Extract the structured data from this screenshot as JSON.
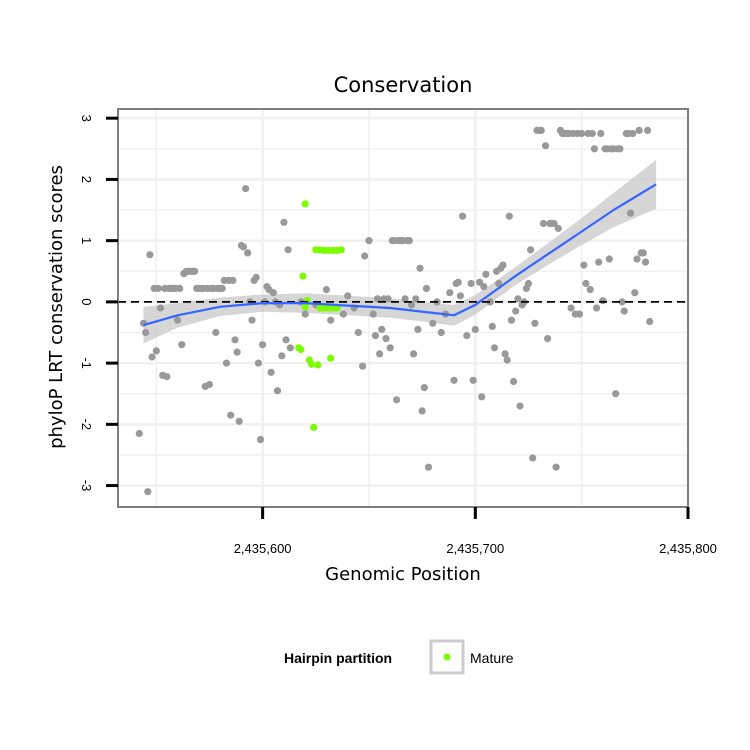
{
  "chart_data": {
    "type": "scatter",
    "title": "Conservation",
    "xlabel": "Genomic Position",
    "ylabel": "phyloP LRT conservation scores",
    "xlim": [
      2435532,
      2435800
    ],
    "ylim": [
      -3.35,
      3.15
    ],
    "x_ticks": [
      2435600,
      2435700,
      2435800
    ],
    "x_tick_labels": [
      "2,435,600",
      "2,435,700",
      "2,435,800"
    ],
    "y_ticks": [
      -3,
      -2,
      -1,
      0,
      1,
      2,
      3
    ],
    "y_tick_labels": [
      "-3",
      "-2",
      "-1",
      "0",
      "1",
      "2",
      "3"
    ],
    "grid": true,
    "reference_line": {
      "y": 0,
      "style": "dashed"
    },
    "colors": {
      "points": "#999999",
      "mature": "#7CFC00",
      "smooth": "#3366FF",
      "ribbon": "#c8c8c8",
      "grid": "#f0f0f0",
      "border": "#7f7f7f"
    },
    "legend": {
      "title": "Hairpin partition",
      "placement": "bottom",
      "entries": [
        {
          "label": "Mature",
          "color": "#7CFC00"
        }
      ]
    },
    "series": [
      {
        "points": [
          [
            2435544,
            -0.35
          ],
          [
            2435545,
            -0.5
          ],
          [
            2435546,
            -3.1
          ],
          [
            2435542,
            -2.15
          ],
          [
            2435547,
            0.77
          ],
          [
            2435548,
            -0.9
          ],
          [
            2435549,
            0.22
          ],
          [
            2435550,
            -0.8
          ],
          [
            2435551,
            0.22
          ],
          [
            2435552,
            -0.1
          ],
          [
            2435553,
            -1.2
          ],
          [
            2435554,
            0.22
          ],
          [
            2435555,
            -1.22
          ],
          [
            2435556,
            0.22
          ],
          [
            2435557,
            0.22
          ],
          [
            2435558,
            0.22
          ],
          [
            2435559,
            0.22
          ],
          [
            2435560,
            -0.3
          ],
          [
            2435561,
            0.22
          ],
          [
            2435562,
            -0.7
          ],
          [
            2435563,
            0.46
          ],
          [
            2435564,
            0.5
          ],
          [
            2435565,
            0.5
          ],
          [
            2435566,
            0.5
          ],
          [
            2435567,
            0.5
          ],
          [
            2435568,
            0.5
          ],
          [
            2435569,
            0.22
          ],
          [
            2435570,
            0.22
          ],
          [
            2435571,
            0.22
          ],
          [
            2435572,
            0.22
          ],
          [
            2435573,
            -1.38
          ],
          [
            2435574,
            0.22
          ],
          [
            2435575,
            -1.35
          ],
          [
            2435576,
            0.22
          ],
          [
            2435577,
            0.22
          ],
          [
            2435578,
            -0.5
          ],
          [
            2435579,
            0.22
          ],
          [
            2435580,
            0.22
          ],
          [
            2435581,
            0.22
          ],
          [
            2435582,
            0.35
          ],
          [
            2435583,
            -1.0
          ],
          [
            2435584,
            0.35
          ],
          [
            2435585,
            -1.85
          ],
          [
            2435586,
            0.35
          ],
          [
            2435587,
            -0.62
          ],
          [
            2435588,
            -0.82
          ],
          [
            2435589,
            -1.95
          ],
          [
            2435590,
            0.92
          ],
          [
            2435591,
            0.9
          ],
          [
            2435592,
            1.85
          ],
          [
            2435593,
            0.8
          ],
          [
            2435594,
            0.0
          ],
          [
            2435595,
            -0.3
          ],
          [
            2435596,
            0.35
          ],
          [
            2435597,
            0.4
          ],
          [
            2435598,
            -1.0
          ],
          [
            2435599,
            -2.25
          ],
          [
            2435600,
            -0.7
          ],
          [
            2435601,
            0.0
          ],
          [
            2435602,
            0.25
          ],
          [
            2435603,
            0.2
          ],
          [
            2435604,
            -1.15
          ],
          [
            2435605,
            0.15
          ],
          [
            2435606,
            0.0
          ],
          [
            2435607,
            -1.45
          ],
          [
            2435608,
            -0.05
          ],
          [
            2435609,
            -0.88
          ],
          [
            2435610,
            1.3
          ],
          [
            2435611,
            -0.62
          ],
          [
            2435612,
            0.85
          ],
          [
            2435613,
            -0.75
          ],
          [
            2435618,
            0.0
          ],
          [
            2435620,
            -0.2
          ],
          [
            2435625,
            -0.05
          ],
          [
            2435630,
            0.2
          ],
          [
            2435632,
            -0.3
          ],
          [
            2435638,
            -0.2
          ],
          [
            2435640,
            0.1
          ],
          [
            2435643,
            -0.1
          ],
          [
            2435645,
            -0.5
          ],
          [
            2435647,
            -1.05
          ],
          [
            2435648,
            0.75
          ],
          [
            2435650,
            1.0
          ],
          [
            2435652,
            -0.2
          ],
          [
            2435653,
            -0.55
          ],
          [
            2435654,
            0.05
          ],
          [
            2435655,
            -0.85
          ],
          [
            2435656,
            -0.45
          ],
          [
            2435657,
            0.05
          ],
          [
            2435658,
            -0.6
          ],
          [
            2435659,
            0.05
          ],
          [
            2435660,
            -0.75
          ],
          [
            2435661,
            1.0
          ],
          [
            2435662,
            1.0
          ],
          [
            2435663,
            -1.6
          ],
          [
            2435664,
            1.0
          ],
          [
            2435665,
            1.0
          ],
          [
            2435666,
            1.0
          ],
          [
            2435667,
            0.05
          ],
          [
            2435668,
            1.0
          ],
          [
            2435669,
            1.0
          ],
          [
            2435670,
            -0.05
          ],
          [
            2435671,
            -0.85
          ],
          [
            2435672,
            0.05
          ],
          [
            2435673,
            -0.45
          ],
          [
            2435674,
            0.55
          ],
          [
            2435675,
            -1.78
          ],
          [
            2435676,
            -1.4
          ],
          [
            2435677,
            0.22
          ],
          [
            2435678,
            -2.7
          ],
          [
            2435680,
            -0.35
          ],
          [
            2435682,
            0.0
          ],
          [
            2435684,
            -0.5
          ],
          [
            2435686,
            -0.2
          ],
          [
            2435688,
            0.15
          ],
          [
            2435690,
            -1.28
          ],
          [
            2435691,
            0.3
          ],
          [
            2435692,
            0.32
          ],
          [
            2435693,
            0.1
          ],
          [
            2435694,
            1.4
          ],
          [
            2435696,
            -0.55
          ],
          [
            2435698,
            0.3
          ],
          [
            2435699,
            -1.28
          ],
          [
            2435700,
            -0.45
          ],
          [
            2435702,
            0.32
          ],
          [
            2435703,
            -1.55
          ],
          [
            2435704,
            0.25
          ],
          [
            2435705,
            0.45
          ],
          [
            2435707,
            0.0
          ],
          [
            2435708,
            -0.4
          ],
          [
            2435709,
            -0.75
          ],
          [
            2435710,
            0.5
          ],
          [
            2435711,
            0.3
          ],
          [
            2435712,
            0.55
          ],
          [
            2435713,
            0.6
          ],
          [
            2435714,
            -0.85
          ],
          [
            2435715,
            -0.95
          ],
          [
            2435716,
            1.4
          ],
          [
            2435717,
            -0.3
          ],
          [
            2435718,
            -1.3
          ],
          [
            2435719,
            -0.15
          ],
          [
            2435720,
            0.05
          ],
          [
            2435721,
            -1.7
          ],
          [
            2435722,
            -0.05
          ],
          [
            2435723,
            0.0
          ],
          [
            2435724,
            0.22
          ],
          [
            2435725,
            0.3
          ],
          [
            2435726,
            0.85
          ],
          [
            2435727,
            -2.55
          ],
          [
            2435728,
            -0.35
          ],
          [
            2435729,
            2.8
          ],
          [
            2435730,
            2.8
          ],
          [
            2435731,
            2.8
          ],
          [
            2435732,
            1.28
          ],
          [
            2435733,
            2.55
          ],
          [
            2435734,
            -0.6
          ],
          [
            2435735,
            1.28
          ],
          [
            2435736,
            1.28
          ],
          [
            2435737,
            1.28
          ],
          [
            2435738,
            -2.7
          ],
          [
            2435739,
            1.2
          ],
          [
            2435740,
            2.8
          ],
          [
            2435741,
            2.75
          ],
          [
            2435742,
            2.75
          ],
          [
            2435743,
            2.75
          ],
          [
            2435744,
            2.75
          ],
          [
            2435745,
            -0.1
          ],
          [
            2435746,
            2.75
          ],
          [
            2435747,
            -0.2
          ],
          [
            2435748,
            2.75
          ],
          [
            2435749,
            -0.2
          ],
          [
            2435750,
            2.75
          ],
          [
            2435751,
            0.6
          ],
          [
            2435752,
            0.3
          ],
          [
            2435753,
            2.75
          ],
          [
            2435754,
            0.2
          ],
          [
            2435755,
            2.75
          ],
          [
            2435756,
            2.5
          ],
          [
            2435757,
            -0.1
          ],
          [
            2435758,
            0.65
          ],
          [
            2435759,
            2.75
          ],
          [
            2435760,
            0.02
          ],
          [
            2435761,
            2.5
          ],
          [
            2435762,
            2.5
          ],
          [
            2435763,
            0.7
          ],
          [
            2435764,
            2.5
          ],
          [
            2435765,
            2.5
          ],
          [
            2435766,
            -1.5
          ],
          [
            2435767,
            2.5
          ],
          [
            2435768,
            2.5
          ],
          [
            2435769,
            0.0
          ],
          [
            2435770,
            -0.15
          ],
          [
            2435771,
            2.75
          ],
          [
            2435772,
            2.75
          ],
          [
            2435773,
            1.45
          ],
          [
            2435774,
            2.75
          ],
          [
            2435775,
            0.15
          ],
          [
            2435776,
            0.7
          ],
          [
            2435777,
            2.8
          ],
          [
            2435778,
            0.8
          ],
          [
            2435779,
            0.8
          ],
          [
            2435780,
            0.65
          ],
          [
            2435781,
            2.8
          ],
          [
            2435782,
            -0.32
          ]
        ]
      },
      {
        "name": "Mature",
        "points": [
          [
            2435620,
            1.6
          ],
          [
            2435619,
            0.42
          ],
          [
            2435617,
            -0.75
          ],
          [
            2435618,
            -0.78
          ],
          [
            2435621,
            0.02
          ],
          [
            2435620,
            -0.08
          ],
          [
            2435622,
            -0.95
          ],
          [
            2435623,
            -1.02
          ],
          [
            2435626,
            -1.03
          ],
          [
            2435624,
            -2.05
          ],
          [
            2435632,
            -0.92
          ],
          [
            2435625,
            0.85
          ],
          [
            2435627,
            0.85
          ],
          [
            2435629,
            0.84
          ],
          [
            2435631,
            0.84
          ],
          [
            2435633,
            0.84
          ],
          [
            2435635,
            0.84
          ],
          [
            2435637,
            0.85
          ],
          [
            2435627,
            -0.1
          ],
          [
            2435629,
            -0.1
          ],
          [
            2435631,
            -0.1
          ],
          [
            2435633,
            -0.1
          ],
          [
            2435635,
            -0.1
          ]
        ]
      }
    ],
    "smooth": [
      [
        2435544,
        -0.38
      ],
      [
        2435560,
        -0.22
      ],
      [
        2435580,
        -0.08
      ],
      [
        2435600,
        -0.02
      ],
      [
        2435620,
        -0.02
      ],
      [
        2435640,
        -0.06
      ],
      [
        2435660,
        -0.1
      ],
      [
        2435680,
        -0.18
      ],
      [
        2435690,
        -0.22
      ],
      [
        2435700,
        -0.05
      ],
      [
        2435710,
        0.2
      ],
      [
        2435720,
        0.45
      ],
      [
        2435735,
        0.8
      ],
      [
        2435750,
        1.15
      ],
      [
        2435765,
        1.5
      ],
      [
        2435785,
        1.92
      ]
    ],
    "ribbon_halfwidth": [
      [
        2435544,
        0.3
      ],
      [
        2435560,
        0.2
      ],
      [
        2435580,
        0.15
      ],
      [
        2435600,
        0.14
      ],
      [
        2435620,
        0.16
      ],
      [
        2435640,
        0.16
      ],
      [
        2435660,
        0.16
      ],
      [
        2435680,
        0.16
      ],
      [
        2435690,
        0.17
      ],
      [
        2435700,
        0.16
      ],
      [
        2435710,
        0.15
      ],
      [
        2435720,
        0.15
      ],
      [
        2435735,
        0.18
      ],
      [
        2435750,
        0.22
      ],
      [
        2435765,
        0.28
      ],
      [
        2435785,
        0.4
      ]
    ]
  }
}
